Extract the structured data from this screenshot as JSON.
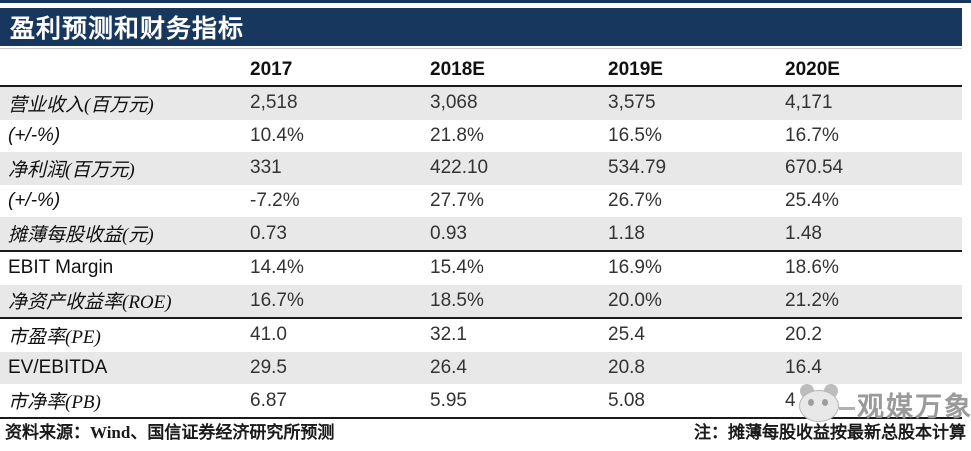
{
  "title": "盈利预测和财务指标",
  "table": {
    "columns": [
      "2017",
      "2018E",
      "2019E",
      "2020E"
    ],
    "rows": [
      {
        "label": "营业收入(百万元)",
        "values": [
          "2,518",
          "3,068",
          "3,575",
          "4,171"
        ]
      },
      {
        "label": "(+/-%)",
        "values": [
          "10.4%",
          "21.8%",
          "16.5%",
          "16.7%"
        ]
      },
      {
        "label": "净利润(百万元)",
        "values": [
          "331",
          "422.10",
          "534.79",
          "670.54"
        ]
      },
      {
        "label": "(+/-%)",
        "values": [
          "-7.2%",
          "27.7%",
          "26.7%",
          "25.4%"
        ]
      },
      {
        "label": "摊薄每股收益(元)",
        "values": [
          "0.73",
          "0.93",
          "1.18",
          "1.48"
        ]
      },
      {
        "label": "EBIT Margin",
        "values": [
          "14.4%",
          "15.4%",
          "16.9%",
          "18.6%"
        ]
      },
      {
        "label": "净资产收益率(ROE)",
        "values": [
          "16.7%",
          "18.5%",
          "20.0%",
          "21.2%"
        ]
      },
      {
        "label": "市盈率(PE)",
        "values": [
          "41.0",
          "32.1",
          "25.4",
          "20.2"
        ]
      },
      {
        "label": "EV/EBITDA",
        "values": [
          "29.5",
          "26.4",
          "20.8",
          "16.4"
        ]
      },
      {
        "label": "市净率(PB)",
        "values": [
          "6.87",
          "5.95",
          "5.08",
          "4"
        ]
      }
    ]
  },
  "footer": {
    "source": "资料来源：Wind、国信证券经济研究所预测",
    "note": "注：摊薄每股收益按最新总股本计算"
  },
  "watermark": {
    "text": "观媒万象"
  },
  "colors": {
    "header_navy": "#17375E",
    "row_stripe": "#E8E8E8",
    "rule_dark": "#1A1A1A",
    "watermark_grey": "#9A9A9A"
  }
}
